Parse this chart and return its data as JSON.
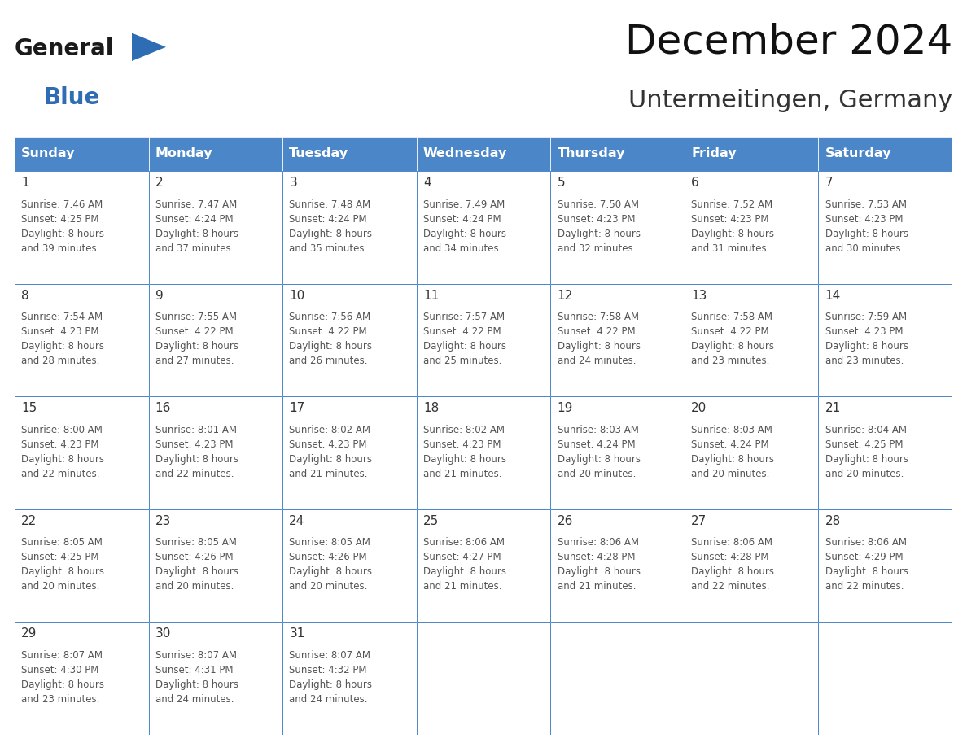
{
  "title": "December 2024",
  "subtitle": "Untermeitingen, Germany",
  "header_color": "#4a86c8",
  "header_text_color": "#ffffff",
  "cell_bg_color": "#ffffff",
  "border_color": "#4a86c8",
  "day_number_color": "#333333",
  "info_text_color": "#555555",
  "weekdays": [
    "Sunday",
    "Monday",
    "Tuesday",
    "Wednesday",
    "Thursday",
    "Friday",
    "Saturday"
  ],
  "logo_general_color": "#1a1a1a",
  "logo_blue_color": "#2e6db4",
  "calendar_data": [
    [
      {
        "day": "1",
        "sunrise": "7:46 AM",
        "sunset": "4:25 PM",
        "daylight": "8 hours\nand 39 minutes."
      },
      {
        "day": "2",
        "sunrise": "7:47 AM",
        "sunset": "4:24 PM",
        "daylight": "8 hours\nand 37 minutes."
      },
      {
        "day": "3",
        "sunrise": "7:48 AM",
        "sunset": "4:24 PM",
        "daylight": "8 hours\nand 35 minutes."
      },
      {
        "day": "4",
        "sunrise": "7:49 AM",
        "sunset": "4:24 PM",
        "daylight": "8 hours\nand 34 minutes."
      },
      {
        "day": "5",
        "sunrise": "7:50 AM",
        "sunset": "4:23 PM",
        "daylight": "8 hours\nand 32 minutes."
      },
      {
        "day": "6",
        "sunrise": "7:52 AM",
        "sunset": "4:23 PM",
        "daylight": "8 hours\nand 31 minutes."
      },
      {
        "day": "7",
        "sunrise": "7:53 AM",
        "sunset": "4:23 PM",
        "daylight": "8 hours\nand 30 minutes."
      }
    ],
    [
      {
        "day": "8",
        "sunrise": "7:54 AM",
        "sunset": "4:23 PM",
        "daylight": "8 hours\nand 28 minutes."
      },
      {
        "day": "9",
        "sunrise": "7:55 AM",
        "sunset": "4:22 PM",
        "daylight": "8 hours\nand 27 minutes."
      },
      {
        "day": "10",
        "sunrise": "7:56 AM",
        "sunset": "4:22 PM",
        "daylight": "8 hours\nand 26 minutes."
      },
      {
        "day": "11",
        "sunrise": "7:57 AM",
        "sunset": "4:22 PM",
        "daylight": "8 hours\nand 25 minutes."
      },
      {
        "day": "12",
        "sunrise": "7:58 AM",
        "sunset": "4:22 PM",
        "daylight": "8 hours\nand 24 minutes."
      },
      {
        "day": "13",
        "sunrise": "7:58 AM",
        "sunset": "4:22 PM",
        "daylight": "8 hours\nand 23 minutes."
      },
      {
        "day": "14",
        "sunrise": "7:59 AM",
        "sunset": "4:23 PM",
        "daylight": "8 hours\nand 23 minutes."
      }
    ],
    [
      {
        "day": "15",
        "sunrise": "8:00 AM",
        "sunset": "4:23 PM",
        "daylight": "8 hours\nand 22 minutes."
      },
      {
        "day": "16",
        "sunrise": "8:01 AM",
        "sunset": "4:23 PM",
        "daylight": "8 hours\nand 22 minutes."
      },
      {
        "day": "17",
        "sunrise": "8:02 AM",
        "sunset": "4:23 PM",
        "daylight": "8 hours\nand 21 minutes."
      },
      {
        "day": "18",
        "sunrise": "8:02 AM",
        "sunset": "4:23 PM",
        "daylight": "8 hours\nand 21 minutes."
      },
      {
        "day": "19",
        "sunrise": "8:03 AM",
        "sunset": "4:24 PM",
        "daylight": "8 hours\nand 20 minutes."
      },
      {
        "day": "20",
        "sunrise": "8:03 AM",
        "sunset": "4:24 PM",
        "daylight": "8 hours\nand 20 minutes."
      },
      {
        "day": "21",
        "sunrise": "8:04 AM",
        "sunset": "4:25 PM",
        "daylight": "8 hours\nand 20 minutes."
      }
    ],
    [
      {
        "day": "22",
        "sunrise": "8:05 AM",
        "sunset": "4:25 PM",
        "daylight": "8 hours\nand 20 minutes."
      },
      {
        "day": "23",
        "sunrise": "8:05 AM",
        "sunset": "4:26 PM",
        "daylight": "8 hours\nand 20 minutes."
      },
      {
        "day": "24",
        "sunrise": "8:05 AM",
        "sunset": "4:26 PM",
        "daylight": "8 hours\nand 20 minutes."
      },
      {
        "day": "25",
        "sunrise": "8:06 AM",
        "sunset": "4:27 PM",
        "daylight": "8 hours\nand 21 minutes."
      },
      {
        "day": "26",
        "sunrise": "8:06 AM",
        "sunset": "4:28 PM",
        "daylight": "8 hours\nand 21 minutes."
      },
      {
        "day": "27",
        "sunrise": "8:06 AM",
        "sunset": "4:28 PM",
        "daylight": "8 hours\nand 22 minutes."
      },
      {
        "day": "28",
        "sunrise": "8:06 AM",
        "sunset": "4:29 PM",
        "daylight": "8 hours\nand 22 minutes."
      }
    ],
    [
      {
        "day": "29",
        "sunrise": "8:07 AM",
        "sunset": "4:30 PM",
        "daylight": "8 hours\nand 23 minutes."
      },
      {
        "day": "30",
        "sunrise": "8:07 AM",
        "sunset": "4:31 PM",
        "daylight": "8 hours\nand 24 minutes."
      },
      {
        "day": "31",
        "sunrise": "8:07 AM",
        "sunset": "4:32 PM",
        "daylight": "8 hours\nand 24 minutes."
      },
      null,
      null,
      null,
      null
    ]
  ]
}
